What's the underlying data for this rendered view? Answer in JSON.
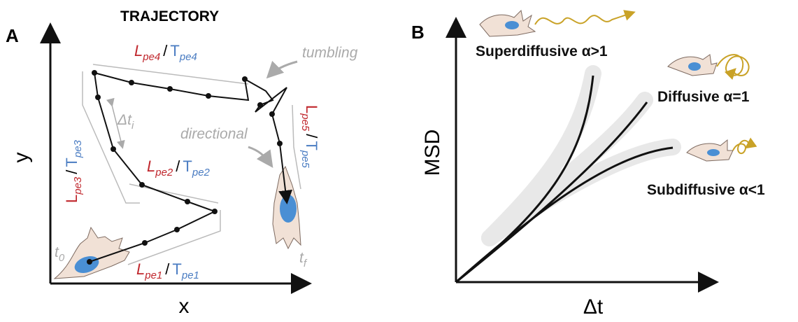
{
  "panel_a": {
    "letter": "A",
    "title": "TRAJECTORY",
    "y_axis": "y",
    "x_axis": "x",
    "t0": {
      "t": "t",
      "sub": "0"
    },
    "tf": {
      "t": "t",
      "sub": "f"
    },
    "dt": {
      "d": "Δt",
      "sub": "i"
    },
    "tumbling": "tumbling",
    "directional": "directional",
    "labels": [
      {
        "L": "L",
        "L_sub": "pe1",
        "sep": "/",
        "T": "T",
        "T_sub": "pe1"
      },
      {
        "L": "L",
        "L_sub": "pe2",
        "sep": "/",
        "T": "T",
        "T_sub": "pe2"
      },
      {
        "L": "L",
        "L_sub": "pe3",
        "sep": "/",
        "T": "T",
        "T_sub": "pe3"
      },
      {
        "L": "L",
        "L_sub": "pe4",
        "sep": "/",
        "T": "T",
        "T_sub": "pe4"
      },
      {
        "L": "L",
        "L_sub": "pe5",
        "sep": "/",
        "T": "T",
        "T_sub": "pe5"
      }
    ]
  },
  "panel_b": {
    "letter": "B",
    "y_axis": "MSD",
    "x_axis": "Δt",
    "regimes": [
      "Superdiffusive α>1",
      "Diffusive α=1",
      "Subdiffusive α<1"
    ]
  }
}
